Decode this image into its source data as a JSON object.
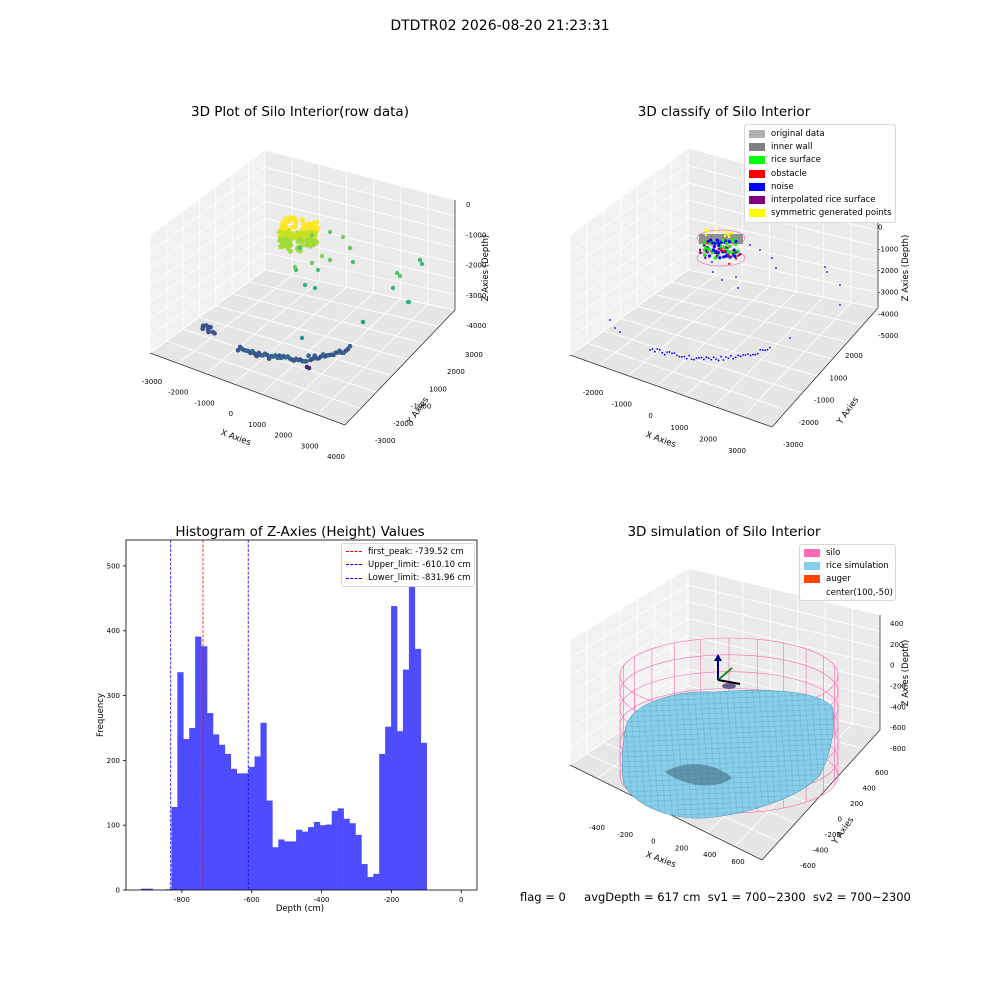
{
  "suptitle": "DTDTR02 2026-08-20 21:23:31",
  "panels": {
    "raw": {
      "title": "3D Plot of Silo Interior(row data)",
      "xlabel": "X Axies",
      "ylabel": "Y Axies",
      "zlabel": "Z Axies (Depth)",
      "xticks": [
        "-3000",
        "-2000",
        "-1000",
        "0",
        "1000",
        "2000",
        "3000",
        "4000"
      ],
      "yticks": [
        "3000",
        "2000",
        "1000",
        "-1000",
        "-2000",
        "-3000"
      ],
      "zticks": [
        "0",
        "-1000",
        "-2000",
        "-3000",
        "-4000"
      ]
    },
    "classify": {
      "title": "3D classify of Silo Interior",
      "xlabel": "X Axies",
      "ylabel": "Y Axies",
      "zlabel": "Z Axies (Depth)",
      "xticks": [
        "-2000",
        "-1000",
        "0",
        "1000",
        "2000",
        "3000"
      ],
      "yticks": [
        "2000",
        "1000",
        "-1000",
        "-2000",
        "-3000"
      ],
      "zticks": [
        "1000",
        "0",
        "-1000",
        "-2000",
        "-3000",
        "-4000",
        "-5000"
      ],
      "legend": [
        {
          "label": "original data",
          "color": "#b0b0b0"
        },
        {
          "label": "inner wall",
          "color": "#808080"
        },
        {
          "label": "rice surface",
          "color": "#00ff00"
        },
        {
          "label": "obstacle",
          "color": "#ff0000"
        },
        {
          "label": "noise",
          "color": "#0000ff"
        },
        {
          "label": "interpolated rice surface",
          "color": "#800080"
        },
        {
          "label": "symmetric generated points",
          "color": "#ffff00"
        }
      ]
    },
    "simulation": {
      "title": "3D simulation of Silo Interior",
      "xlabel": "X Axies",
      "ylabel": "Y Axies",
      "zlabel": "Z Axies (Depth)",
      "xticks": [
        "-400",
        "-200",
        "0",
        "200",
        "400",
        "600"
      ],
      "yticks": [
        "600",
        "400",
        "200",
        "0",
        "-200",
        "-400",
        "-600"
      ],
      "zticks": [
        "400",
        "200",
        "0",
        "-200",
        "-400",
        "-600",
        "-800"
      ],
      "legend": [
        {
          "label": "silo",
          "color": "#ff69b4"
        },
        {
          "label": "rice simulation",
          "color": "#87ceeb"
        },
        {
          "label": "auger",
          "color": "#ff4500"
        },
        {
          "label": "center(100,-50)",
          "color": ""
        }
      ]
    }
  },
  "footer": {
    "flag": "flag = 0",
    "avg": "avgDepth = 617 cm",
    "sv1": "sv1 = 700~2300",
    "sv2": "sv2 = 700~2300"
  },
  "colors": {
    "bar": "#4d4dff",
    "peak_line": "#ff0000",
    "limit_line": "#0000ff",
    "silo": "#ff69b4",
    "rice": "#87ceeb"
  },
  "chart_data": [
    {
      "type": "scatter",
      "title": "3D Plot of Silo Interior(row data)",
      "dimensions": "3d",
      "xlabel": "X Axies",
      "ylabel": "Y Axies",
      "zlabel": "Z Axies (Depth)",
      "xlim": [
        -3000,
        4000
      ],
      "ylim": [
        -3000,
        3000
      ],
      "zlim": [
        -4000,
        0
      ],
      "colormap": "viridis",
      "grid": true
    },
    {
      "type": "scatter",
      "title": "3D classify of Silo Interior",
      "dimensions": "3d",
      "xlabel": "X Axies",
      "ylabel": "Y Axies",
      "zlabel": "Z Axies (Depth)",
      "xlim": [
        -2000,
        3000
      ],
      "ylim": [
        -3000,
        2000
      ],
      "zlim": [
        -5000,
        1000
      ],
      "series": [
        {
          "name": "original data"
        },
        {
          "name": "inner wall"
        },
        {
          "name": "rice surface"
        },
        {
          "name": "obstacle"
        },
        {
          "name": "noise"
        },
        {
          "name": "interpolated rice surface"
        },
        {
          "name": "symmetric generated points"
        }
      ],
      "legend_position": "top-right",
      "grid": true
    },
    {
      "type": "bar",
      "title": "Histogram of Z-Axies (Height) Values",
      "xlabel": "Depth (cm)",
      "ylabel": "Frequency",
      "xlim": [
        -960,
        45
      ],
      "ylim": [
        0,
        540
      ],
      "xticks": [
        -800,
        -600,
        -400,
        -200,
        0
      ],
      "yticks": [
        0,
        100,
        200,
        300,
        400,
        500
      ],
      "bin_width": 17,
      "bin_start": -830,
      "values": [
        128,
        336,
        233,
        250,
        391,
        376,
        273,
        240,
        224,
        210,
        187,
        180,
        180,
        190,
        206,
        258,
        138,
        66,
        78,
        75,
        75,
        93,
        90,
        97,
        105,
        100,
        101,
        122,
        126,
        110,
        103,
        85,
        40,
        20,
        25,
        210,
        252,
        438,
        245,
        340,
        515,
        372,
        227
      ],
      "extra_bins": [
        {
          "x0": -917,
          "x1": -883,
          "value": 2
        },
        {
          "x0": -847,
          "x1": -830,
          "value": 1
        }
      ],
      "vlines": [
        {
          "label": "first_peak: -739.52 cm",
          "x": -739.52,
          "color": "#ff0000"
        },
        {
          "label": "Upper_limit: -610.10 cm",
          "x": -610.1,
          "color": "#0000ff"
        },
        {
          "label": "Lower_limit: -831.96 cm",
          "x": -831.96,
          "color": "#0000ff"
        }
      ],
      "legend_position": "top-right"
    },
    {
      "type": "area",
      "title": "3D simulation of Silo Interior",
      "dimensions": "3d",
      "xlabel": "X Axies",
      "ylabel": "Y Axies",
      "zlabel": "Z Axies (Depth)",
      "xlim": [
        -500,
        700
      ],
      "ylim": [
        -700,
        700
      ],
      "zlim": [
        -900,
        450
      ],
      "series": [
        {
          "name": "silo"
        },
        {
          "name": "rice simulation"
        },
        {
          "name": "auger"
        },
        {
          "name": "center(100,-50)"
        }
      ],
      "legend_position": "top-right",
      "grid": true
    }
  ]
}
